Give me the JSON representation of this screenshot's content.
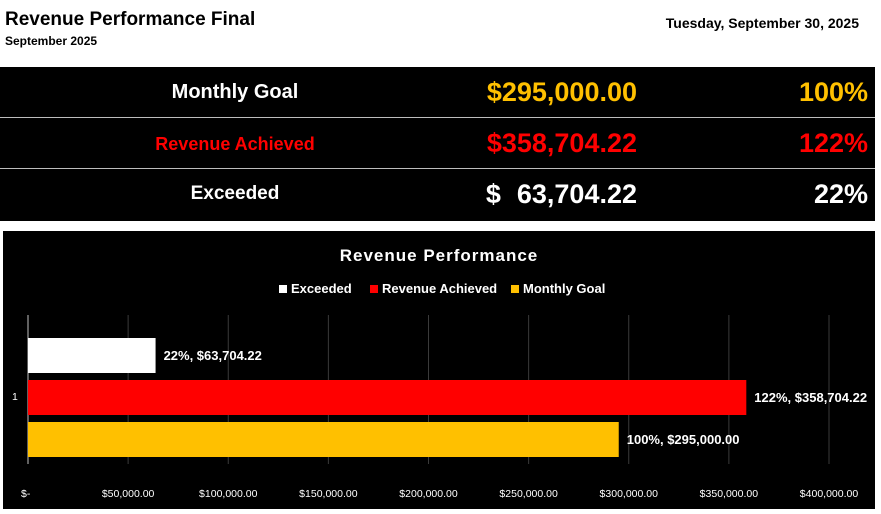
{
  "header": {
    "title": "Revenue Performance Final",
    "subtitle": "September 2025",
    "date": "Tuesday, September 30, 2025"
  },
  "summary": [
    {
      "label": "Monthly Goal",
      "amount": "$295,000.00",
      "percent": "100%",
      "color": "#FFC000"
    },
    {
      "label": "Revenue Achieved",
      "amount": "$358,704.22",
      "percent": "122%",
      "color": "#FF0000"
    },
    {
      "label": "Exceeded",
      "dollar": "$",
      "amount": "63,704.22",
      "percent": "22%",
      "color": "#FFFFFF"
    }
  ],
  "chart_data": {
    "type": "bar",
    "orientation": "horizontal",
    "title": "Revenue Performance",
    "categories": [
      "1"
    ],
    "series": [
      {
        "name": "Exceeded",
        "values": [
          63704.22
        ],
        "color": "#FFFFFF",
        "label": "22%, $63,704.22"
      },
      {
        "name": "Revenue Achieved",
        "values": [
          358704.22
        ],
        "color": "#FF0000",
        "label": "122%, $358,704.22"
      },
      {
        "name": "Monthly Goal",
        "values": [
          295000.0
        ],
        "color": "#FFC000",
        "label": "100%, $295,000.00"
      }
    ],
    "xlim": [
      0,
      400000
    ],
    "xticks": [
      0,
      50000,
      100000,
      150000,
      200000,
      250000,
      300000,
      350000,
      400000
    ],
    "xtick_labels": [
      "$-",
      "$50,000.00",
      "$100,000.00",
      "$150,000.00",
      "$200,000.00",
      "$250,000.00",
      "$300,000.00",
      "$350,000.00",
      "$400,000.00"
    ],
    "grid": true,
    "legend_position": "top",
    "background": "#000000"
  }
}
